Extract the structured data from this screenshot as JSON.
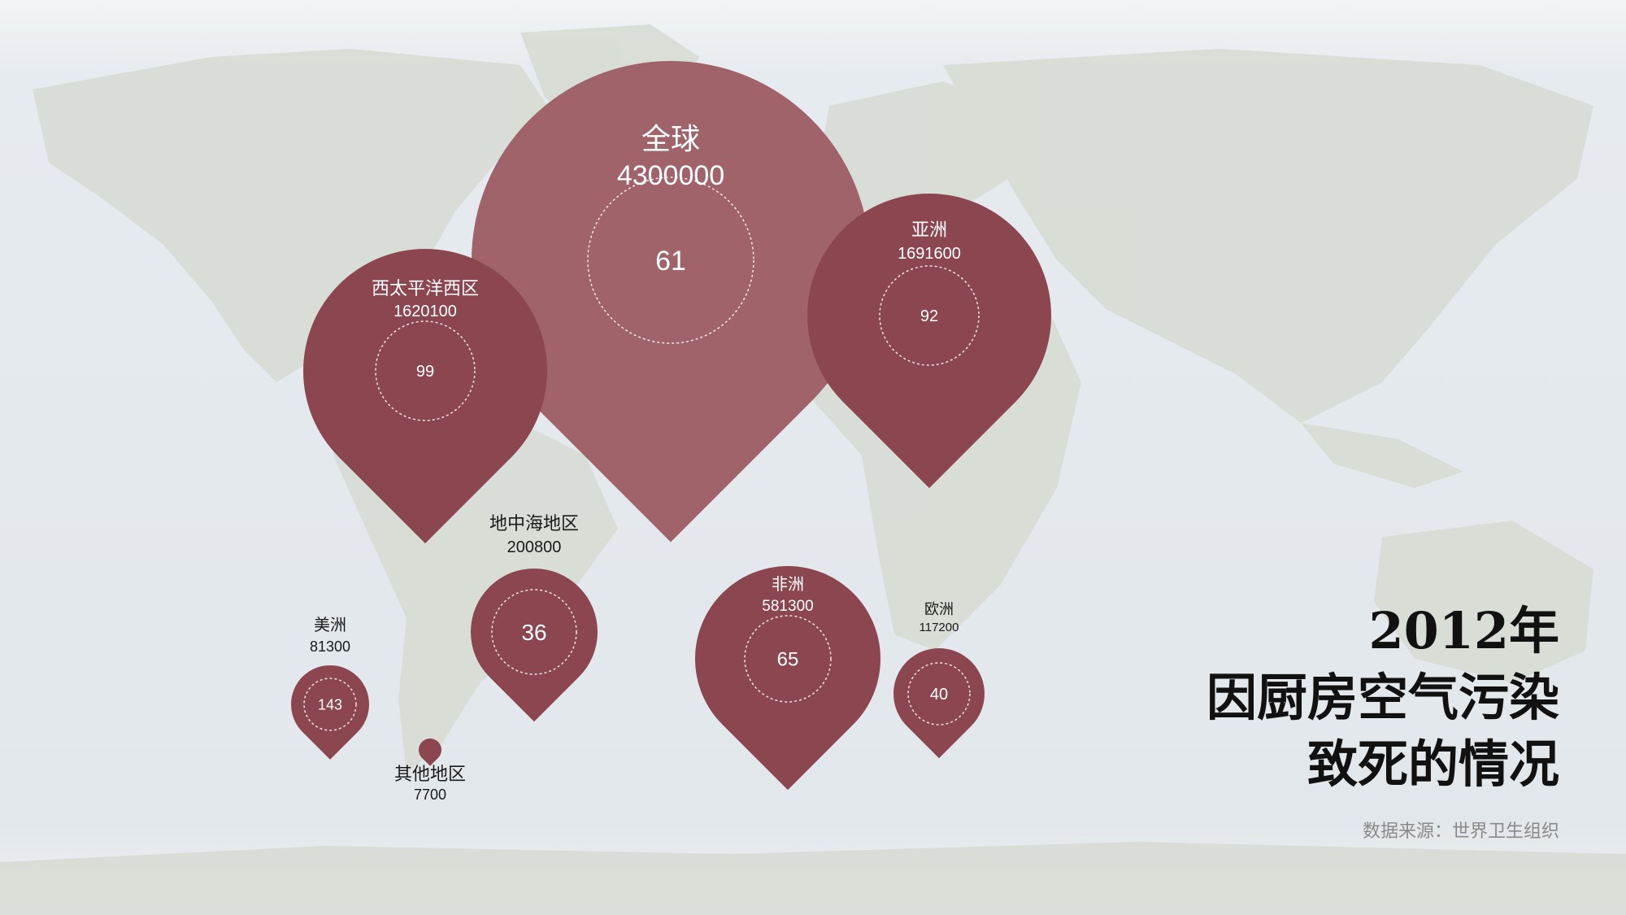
{
  "title_lines": [
    "2012年",
    "因厨房空气污染",
    "致死的情况"
  ],
  "source": "数据来源：世界卫生组织",
  "colors": {
    "pin": "#8c4650",
    "pin_global": "#a0636a",
    "label_dark": "#1a1a1a",
    "label_light": "#ffffff"
  },
  "chart_data": {
    "type": "proportional-pin-map",
    "title": "2012年 因厨房空气污染致死的情况",
    "series": [
      {
        "name": "deaths",
        "points": [
          {
            "region": "全球",
            "deaths": 4300000,
            "rate": 61
          },
          {
            "region": "亚洲",
            "deaths": 1691600,
            "rate": 92
          },
          {
            "region": "西太平洋西区",
            "deaths": 1620100,
            "rate": 99
          },
          {
            "region": "非洲",
            "deaths": 581300,
            "rate": 65
          },
          {
            "region": "地中海地区",
            "deaths": 200800,
            "rate": 36
          },
          {
            "region": "欧洲",
            "deaths": 117200,
            "rate": 40
          },
          {
            "region": "美洲",
            "deaths": 81300,
            "rate": 143
          },
          {
            "region": "其他地区",
            "deaths": 7700,
            "rate": null
          }
        ]
      }
    ]
  }
}
